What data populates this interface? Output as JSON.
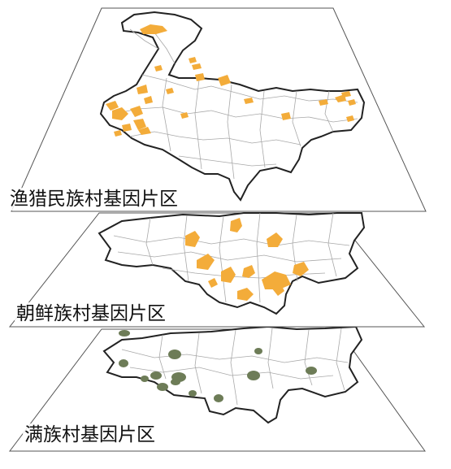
{
  "layers": [
    {
      "label": "渔猎民族村基因片区",
      "zone_color": "#f3ac3a",
      "zone_count": 24
    },
    {
      "label": "朝鲜族村基因片区",
      "zone_color": "#f3ac3a",
      "zone_count": 11
    },
    {
      "label": "满族村基因片区",
      "zone_color": "#6d7c57",
      "zone_count": 13
    }
  ],
  "colors": {
    "boundary": "#222222",
    "county_lines": "#a8a8a8",
    "plane_edge": "#555555",
    "background": "#ffffff"
  }
}
